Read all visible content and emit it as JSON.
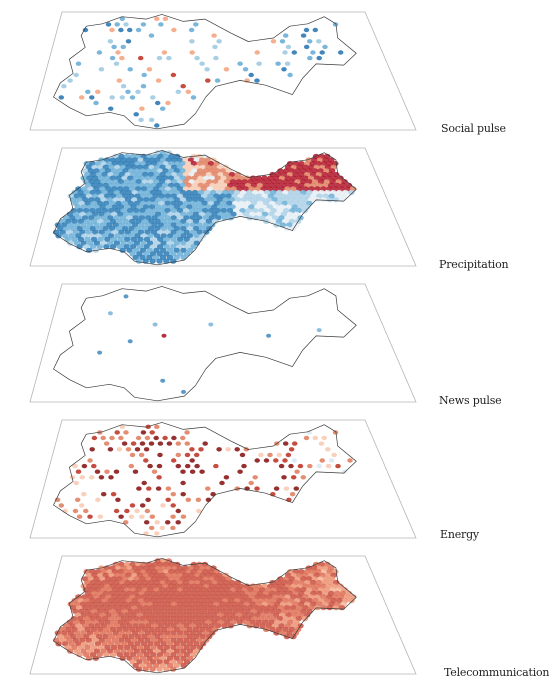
{
  "layers": [
    {
      "label": "Social pulse",
      "style": "sparse",
      "palette": [
        "#2f79b5",
        "#6aaed6",
        "#9ecae1",
        "#f4a582",
        "#c0392b",
        "#8b1a1a"
      ],
      "density": 0.28,
      "bias": -0.45
    },
    {
      "label": "Precipitation",
      "style": "dense",
      "palette": [
        "#2c7bb6",
        "#6aaed6",
        "#abd0e6",
        "#e6eef5",
        "#f7cbb4",
        "#e08163",
        "#b2182b"
      ],
      "density": 1.0,
      "bias": -0.55
    },
    {
      "label": "News pulse",
      "style": "points",
      "palette": [
        "#4a90c2",
        "#7fb6dc",
        "#b2182b"
      ],
      "density": 0.03,
      "bias": -0.6
    },
    {
      "label": "Energy",
      "style": "medium",
      "palette": [
        "#6aaed6",
        "#abd0e6",
        "#dbe9f3",
        "#f7cbb4",
        "#e08163",
        "#c0392b",
        "#8b1a1a"
      ],
      "density": 0.45,
      "bias": 0.35
    },
    {
      "label": "Telecommunications",
      "style": "dense",
      "palette": [
        "#9ecae1",
        "#f7d9c8",
        "#f4b59a",
        "#ec9476",
        "#de6f55",
        "#c9503f"
      ],
      "density": 1.0,
      "bias": 0.65
    }
  ],
  "colors": {
    "outline": "#3a3a3a",
    "plane_edge": "#b5b5b5",
    "plane_fill": "#ffffff"
  }
}
